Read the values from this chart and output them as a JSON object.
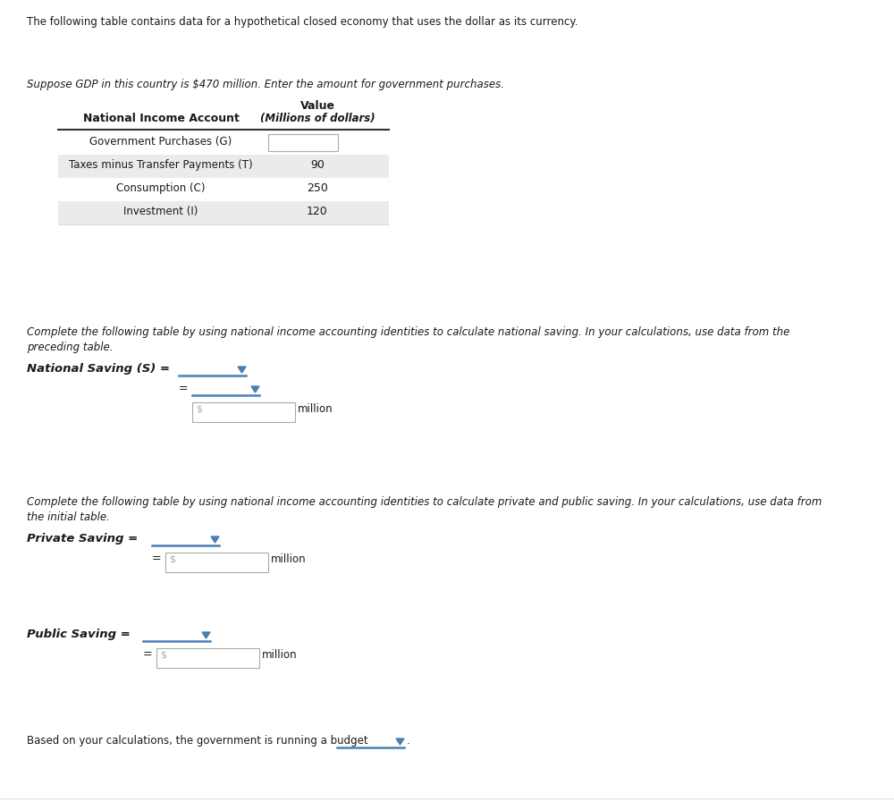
{
  "bg_color": "#ffffff",
  "header_text1": "The following table contains data for a hypothetical closed economy that uses the dollar as its currency.",
  "italic_text1": "Suppose GDP in this country is $470 million. Enter the amount for government purchases.",
  "table_col1_header": "National Income Account",
  "table_col2_header_line1": "Value",
  "table_col2_header_line2": "(Millions of dollars)",
  "table_rows": [
    {
      "label": "Government Purchases (G)",
      "value": "",
      "shaded": false,
      "has_box": true
    },
    {
      "label": "Taxes minus Transfer Payments (T)",
      "value": "90",
      "shaded": true,
      "has_box": false
    },
    {
      "label": "Consumption (C)",
      "value": "250",
      "shaded": false,
      "has_box": false
    },
    {
      "label": "Investment (I)",
      "value": "120",
      "shaded": true,
      "has_box": false
    }
  ],
  "italic_text2a": "Complete the following table by using national income accounting identities to calculate national saving. In your calculations, use data from the",
  "italic_text2b": "preceding table.",
  "national_saving_label": "National Saving (S) =",
  "italic_text3a": "Complete the following table by using national income accounting identities to calculate private and public saving. In your calculations, use data from",
  "italic_text3b": "the initial table.",
  "private_saving_label": "Private Saving =",
  "public_saving_label": "Public Saving =",
  "budget_text": "Based on your calculations, the government is running a budget",
  "dropdown_color": "#4a7fb5",
  "box_border_color": "#aaaaaa",
  "shaded_row_color": "#ebebeb",
  "dollar_color": "#aaaaaa"
}
